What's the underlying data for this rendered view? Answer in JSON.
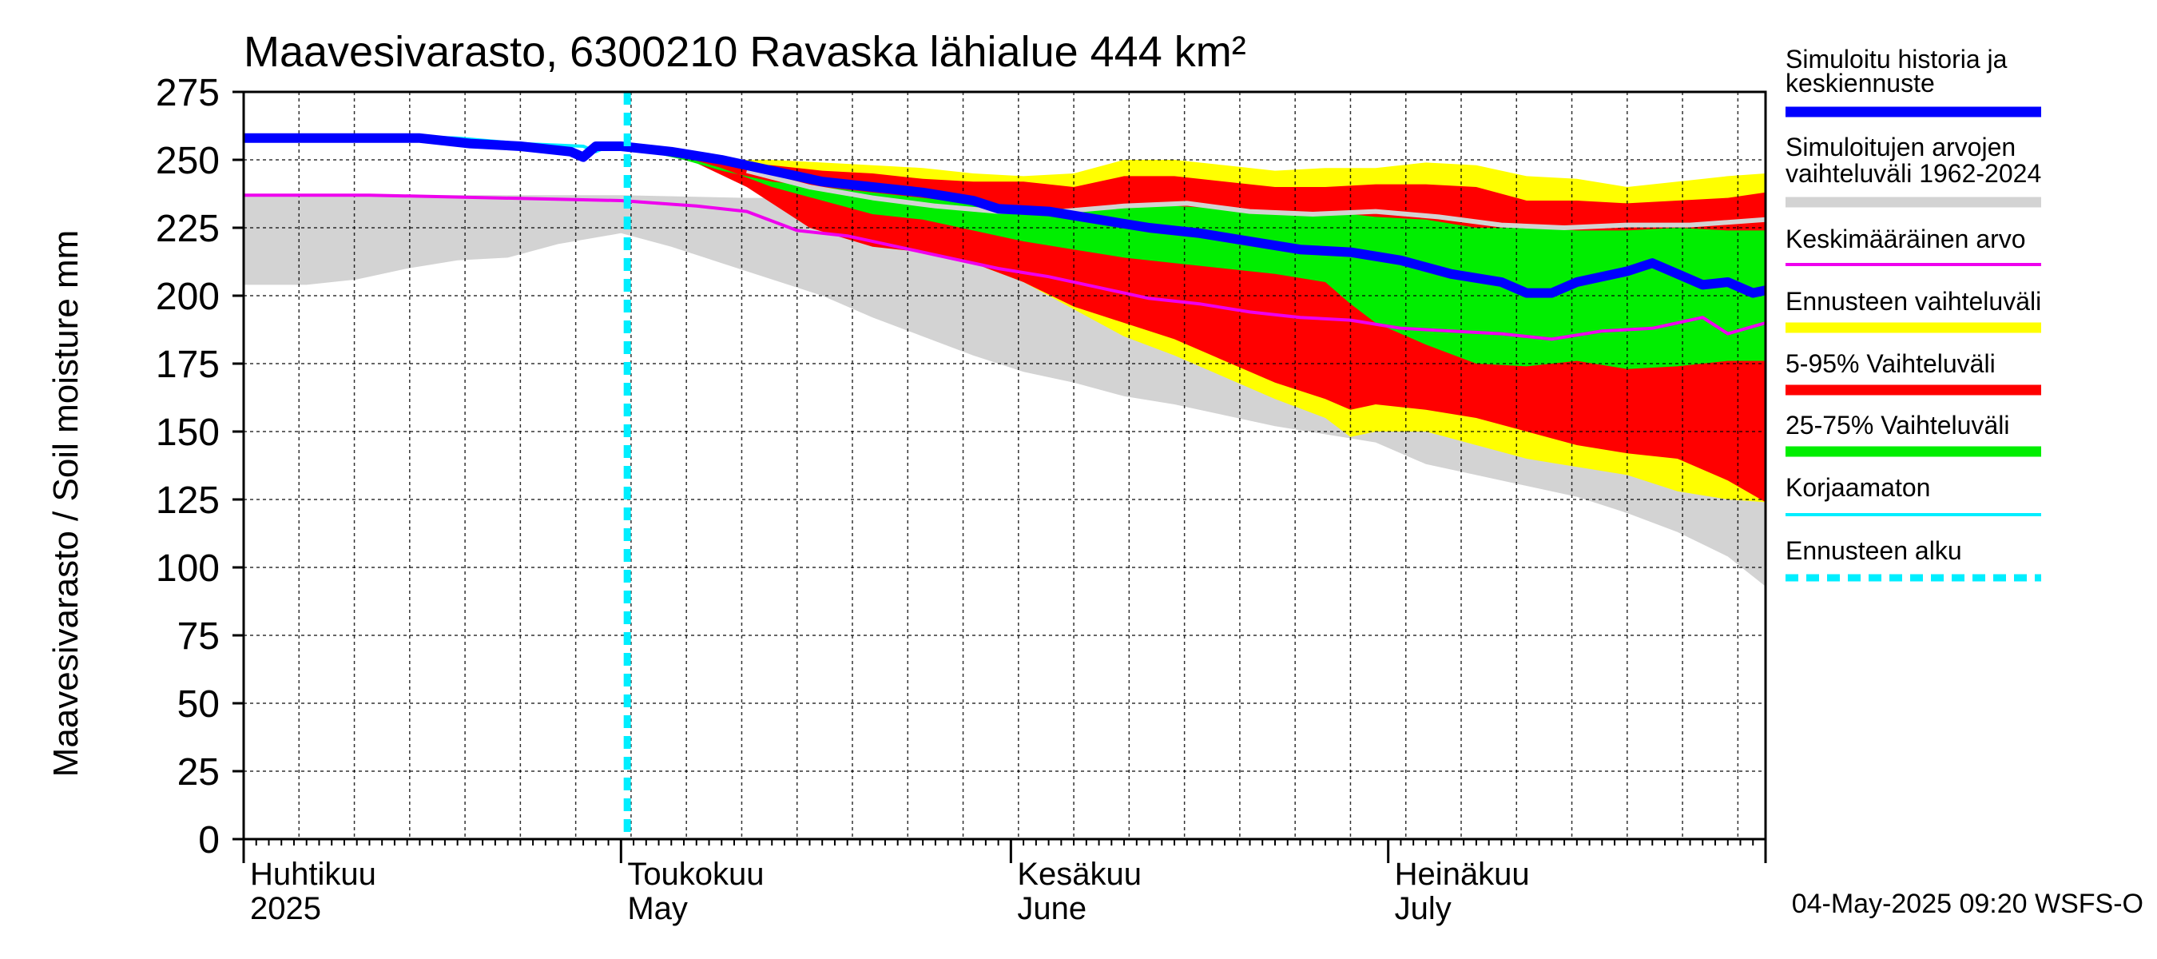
{
  "chart_data": {
    "type": "area",
    "title": "Maavesivarasto, 6300210 Ravaska lähialue 444 km²",
    "ylabel": "Maavesivarasto / Soil moisture   mm",
    "xlabel": "",
    "ylim": [
      0,
      275
    ],
    "yticks": [
      0,
      25,
      50,
      75,
      100,
      125,
      150,
      175,
      200,
      225,
      250,
      275
    ],
    "xlim_days": [
      0,
      121
    ],
    "grid": true,
    "months": [
      {
        "fi": "Huhtikuu",
        "en": "2025",
        "day": 0
      },
      {
        "fi": "Toukokuu",
        "en": "May",
        "day": 30
      },
      {
        "fi": "Kesäkuu",
        "en": "June",
        "day": 61
      },
      {
        "fi": "Heinäkuu",
        "en": "July",
        "day": 91
      }
    ],
    "forecast_start_day": 30.5,
    "timestamp": "04-May-2025 09:20 WSFS-O",
    "legend": [
      {
        "key": "sim",
        "label_lines": [
          "Simuloitu historia ja",
          "keskiennuste"
        ],
        "color": "#0000ff",
        "style": "thick"
      },
      {
        "key": "hist",
        "label_lines": [
          "Simuloitujen arvojen",
          "vaihteluväli 1962-2024"
        ],
        "color": "#d3d3d3",
        "style": "thick"
      },
      {
        "key": "mean",
        "label_lines": [
          "Keskimääräinen arvo"
        ],
        "color": "#ee00ee",
        "style": "thin"
      },
      {
        "key": "yellow",
        "label_lines": [
          "Ennusteen vaihteluväli"
        ],
        "color": "#ffff00",
        "style": "thick"
      },
      {
        "key": "red",
        "label_lines": [
          "5-95% Vaihteluväli"
        ],
        "color": "#ff0000",
        "style": "thick"
      },
      {
        "key": "green",
        "label_lines": [
          "25-75% Vaihteluväli"
        ],
        "color": "#00ee00",
        "style": "thick"
      },
      {
        "key": "uncorr",
        "label_lines": [
          "Korjaamaton"
        ],
        "color": "#00eeff",
        "style": "thin"
      },
      {
        "key": "start",
        "label_lines": [
          "Ennusteen alku"
        ],
        "color": "#00eeff",
        "style": "dashed"
      }
    ],
    "series": [
      {
        "name": "Simuloitujen arvojen vaihteluväli 1962-2024 (upper)",
        "color": "#d3d3d3",
        "points": [
          [
            0,
            237
          ],
          [
            10,
            237
          ],
          [
            20,
            237
          ],
          [
            30,
            237
          ],
          [
            40,
            236
          ],
          [
            50,
            236
          ],
          [
            60,
            236
          ],
          [
            70,
            236
          ],
          [
            80,
            236
          ],
          [
            90,
            236
          ],
          [
            100,
            236
          ],
          [
            110,
            236
          ],
          [
            121,
            236
          ]
        ]
      },
      {
        "name": "Simuloitujen arvojen vaihteluväli 1962-2024 (lower)",
        "color": "#d3d3d3",
        "points": [
          [
            0,
            204
          ],
          [
            5,
            204
          ],
          [
            9,
            206
          ],
          [
            13,
            210
          ],
          [
            17,
            213
          ],
          [
            21,
            214
          ],
          [
            25,
            219
          ],
          [
            30,
            223
          ],
          [
            34,
            218
          ],
          [
            38,
            212
          ],
          [
            42,
            206
          ],
          [
            46,
            200
          ],
          [
            50,
            192
          ],
          [
            54,
            185
          ],
          [
            58,
            178
          ],
          [
            62,
            172
          ],
          [
            66,
            168
          ],
          [
            70,
            163
          ],
          [
            74,
            160
          ],
          [
            78,
            156
          ],
          [
            82,
            152
          ],
          [
            86,
            149
          ],
          [
            90,
            146
          ],
          [
            94,
            138
          ],
          [
            98,
            134
          ],
          [
            102,
            130
          ],
          [
            106,
            126
          ],
          [
            110,
            120
          ],
          [
            114,
            113
          ],
          [
            118,
            104
          ],
          [
            121,
            93
          ]
        ]
      },
      {
        "name": "Ennusteen vaihteluväli (upper)",
        "color": "#ffff00",
        "points": [
          [
            30,
            255
          ],
          [
            35,
            253
          ],
          [
            38,
            250
          ],
          [
            42,
            250
          ],
          [
            46,
            249
          ],
          [
            50,
            248
          ],
          [
            54,
            247
          ],
          [
            58,
            245
          ],
          [
            62,
            244
          ],
          [
            66,
            245
          ],
          [
            70,
            250
          ],
          [
            74,
            250
          ],
          [
            78,
            248
          ],
          [
            82,
            246
          ],
          [
            86,
            247
          ],
          [
            90,
            247
          ],
          [
            94,
            249
          ],
          [
            98,
            248
          ],
          [
            102,
            244
          ],
          [
            106,
            243
          ],
          [
            110,
            240
          ],
          [
            114,
            242
          ],
          [
            118,
            244
          ],
          [
            121,
            245
          ]
        ]
      },
      {
        "name": "Ennusteen vaihteluväli (lower)",
        "color": "#ffff00",
        "points": [
          [
            30,
            255
          ],
          [
            35,
            252
          ],
          [
            40,
            242
          ],
          [
            45,
            232
          ],
          [
            50,
            220
          ],
          [
            54,
            218
          ],
          [
            58,
            212
          ],
          [
            62,
            205
          ],
          [
            66,
            195
          ],
          [
            70,
            185
          ],
          [
            74,
            178
          ],
          [
            78,
            170
          ],
          [
            82,
            162
          ],
          [
            86,
            155
          ],
          [
            88,
            148
          ],
          [
            90,
            150
          ],
          [
            94,
            150
          ],
          [
            98,
            145
          ],
          [
            102,
            140
          ],
          [
            106,
            137
          ],
          [
            110,
            134
          ],
          [
            114,
            128
          ],
          [
            118,
            125
          ],
          [
            121,
            124
          ]
        ]
      },
      {
        "name": "5-95% Vaihteluväli (upper)",
        "color": "#ff0000",
        "points": [
          [
            30,
            255
          ],
          [
            35,
            252
          ],
          [
            38,
            249
          ],
          [
            42,
            248
          ],
          [
            46,
            246
          ],
          [
            50,
            245
          ],
          [
            54,
            243
          ],
          [
            58,
            242
          ],
          [
            62,
            242
          ],
          [
            66,
            240
          ],
          [
            70,
            244
          ],
          [
            74,
            244
          ],
          [
            78,
            242
          ],
          [
            82,
            240
          ],
          [
            86,
            240
          ],
          [
            90,
            241
          ],
          [
            94,
            241
          ],
          [
            98,
            240
          ],
          [
            102,
            235
          ],
          [
            106,
            235
          ],
          [
            110,
            234
          ],
          [
            114,
            235
          ],
          [
            118,
            236
          ],
          [
            121,
            238
          ]
        ]
      },
      {
        "name": "5-95% Vaihteluväli (lower)",
        "color": "#ff0000",
        "points": [
          [
            30,
            255
          ],
          [
            35,
            251
          ],
          [
            40,
            240
          ],
          [
            45,
            225
          ],
          [
            50,
            218
          ],
          [
            54,
            216
          ],
          [
            58,
            212
          ],
          [
            62,
            205
          ],
          [
            66,
            196
          ],
          [
            70,
            190
          ],
          [
            74,
            184
          ],
          [
            78,
            176
          ],
          [
            82,
            168
          ],
          [
            86,
            162
          ],
          [
            88,
            158
          ],
          [
            90,
            160
          ],
          [
            94,
            158
          ],
          [
            98,
            155
          ],
          [
            102,
            150
          ],
          [
            106,
            145
          ],
          [
            110,
            142
          ],
          [
            114,
            140
          ],
          [
            118,
            132
          ],
          [
            121,
            124
          ]
        ]
      },
      {
        "name": "25-75% Vaihteluväli (upper)",
        "color": "#00ee00",
        "points": [
          [
            30,
            255
          ],
          [
            35,
            250
          ],
          [
            38,
            246
          ],
          [
            42,
            242
          ],
          [
            46,
            240
          ],
          [
            50,
            238
          ],
          [
            54,
            236
          ],
          [
            58,
            234
          ],
          [
            62,
            232
          ],
          [
            66,
            232
          ],
          [
            70,
            233
          ],
          [
            74,
            233
          ],
          [
            78,
            232
          ],
          [
            82,
            230
          ],
          [
            86,
            231
          ],
          [
            90,
            229
          ],
          [
            94,
            228
          ],
          [
            98,
            225
          ],
          [
            102,
            225
          ],
          [
            106,
            224
          ],
          [
            110,
            224
          ],
          [
            114,
            225
          ],
          [
            118,
            224
          ],
          [
            121,
            224
          ]
        ]
      },
      {
        "name": "25-75% Vaihteluväli (lower)",
        "color": "#00ee00",
        "points": [
          [
            30,
            255
          ],
          [
            35,
            251
          ],
          [
            38,
            247
          ],
          [
            42,
            240
          ],
          [
            46,
            235
          ],
          [
            50,
            230
          ],
          [
            54,
            228
          ],
          [
            58,
            224
          ],
          [
            62,
            220
          ],
          [
            66,
            217
          ],
          [
            70,
            214
          ],
          [
            74,
            212
          ],
          [
            78,
            210
          ],
          [
            82,
            208
          ],
          [
            86,
            205
          ],
          [
            88,
            197
          ],
          [
            90,
            190
          ],
          [
            94,
            182
          ],
          [
            98,
            175
          ],
          [
            102,
            174
          ],
          [
            106,
            176
          ],
          [
            110,
            173
          ],
          [
            114,
            174
          ],
          [
            118,
            176
          ],
          [
            121,
            176
          ]
        ]
      },
      {
        "name": "Keskimääräinen arvo",
        "color": "#ee00ee",
        "points": [
          [
            0,
            237
          ],
          [
            10,
            237
          ],
          [
            20,
            236
          ],
          [
            30,
            235
          ],
          [
            36,
            233
          ],
          [
            40,
            231
          ],
          [
            44,
            224
          ],
          [
            48,
            222
          ],
          [
            52,
            218
          ],
          [
            56,
            214
          ],
          [
            60,
            210
          ],
          [
            64,
            207
          ],
          [
            68,
            203
          ],
          [
            72,
            199
          ],
          [
            76,
            197
          ],
          [
            80,
            194
          ],
          [
            84,
            192
          ],
          [
            88,
            191
          ],
          [
            92,
            188
          ],
          [
            96,
            187
          ],
          [
            100,
            186
          ],
          [
            104,
            184
          ],
          [
            108,
            187
          ],
          [
            112,
            188
          ],
          [
            116,
            192
          ],
          [
            118,
            186
          ],
          [
            121,
            190
          ]
        ]
      },
      {
        "name": "Mediaani (harmaa)",
        "color": "#d3d3d3",
        "points": [
          [
            40,
            246
          ],
          [
            45,
            240
          ],
          [
            50,
            236
          ],
          [
            55,
            233
          ],
          [
            60,
            231
          ],
          [
            65,
            231
          ],
          [
            70,
            233
          ],
          [
            75,
            234
          ],
          [
            80,
            231
          ],
          [
            85,
            230
          ],
          [
            90,
            231
          ],
          [
            95,
            229
          ],
          [
            100,
            226
          ],
          [
            105,
            225
          ],
          [
            110,
            226
          ],
          [
            115,
            226
          ],
          [
            121,
            228
          ]
        ]
      },
      {
        "name": "Korjaamaton",
        "color": "#00eeff",
        "points": [
          [
            0,
            259
          ],
          [
            10,
            259
          ],
          [
            17,
            258
          ],
          [
            22,
            256
          ],
          [
            27,
            255
          ],
          [
            28,
            253
          ],
          [
            29,
            255
          ],
          [
            31,
            255
          ]
        ]
      },
      {
        "name": "Simuloitu historia ja keskiennuste",
        "color": "#0000ff",
        "points": [
          [
            0,
            258
          ],
          [
            5,
            258
          ],
          [
            10,
            258
          ],
          [
            14,
            258
          ],
          [
            18,
            256
          ],
          [
            22,
            255
          ],
          [
            26,
            253
          ],
          [
            27,
            251
          ],
          [
            28,
            255
          ],
          [
            30,
            255
          ],
          [
            34,
            253
          ],
          [
            38,
            250
          ],
          [
            42,
            246
          ],
          [
            46,
            242
          ],
          [
            50,
            240
          ],
          [
            54,
            238
          ],
          [
            58,
            235
          ],
          [
            60,
            232
          ],
          [
            64,
            231
          ],
          [
            68,
            228
          ],
          [
            72,
            225
          ],
          [
            76,
            223
          ],
          [
            80,
            220
          ],
          [
            84,
            217
          ],
          [
            88,
            216
          ],
          [
            92,
            213
          ],
          [
            96,
            208
          ],
          [
            100,
            205
          ],
          [
            102,
            201
          ],
          [
            104,
            201
          ],
          [
            106,
            205
          ],
          [
            110,
            209
          ],
          [
            112,
            212
          ],
          [
            114,
            208
          ],
          [
            116,
            204
          ],
          [
            118,
            205
          ],
          [
            120,
            201
          ],
          [
            121,
            202
          ]
        ]
      }
    ]
  }
}
